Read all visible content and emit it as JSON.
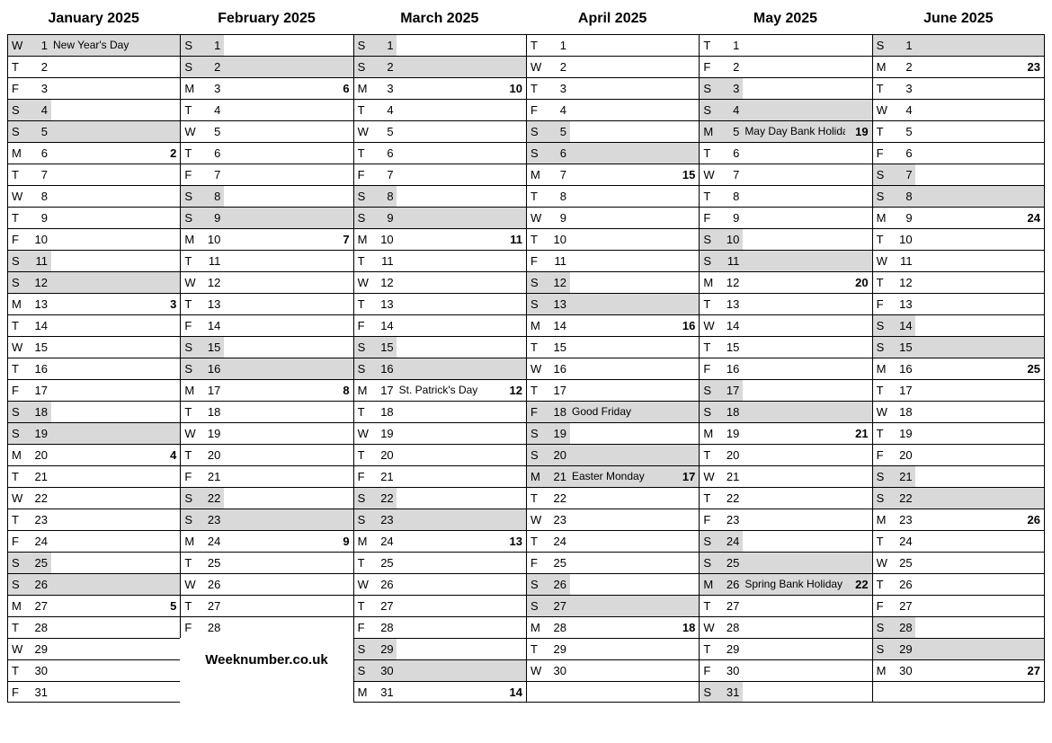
{
  "footer": "Weeknumber.co.uk",
  "colors": {
    "weekend_bg": "#d9d9d9",
    "border": "#000000",
    "text": "#000000",
    "bg": "#ffffff"
  },
  "weekend_short_pct": 25,
  "weekend_full_pct": 100,
  "months": [
    {
      "title": "January 2025",
      "days": [
        {
          "dow": "W",
          "n": 1,
          "label": "New Year's Day",
          "wend": "full"
        },
        {
          "dow": "T",
          "n": 2
        },
        {
          "dow": "F",
          "n": 3
        },
        {
          "dow": "S",
          "n": 4,
          "wend": "short"
        },
        {
          "dow": "S",
          "n": 5,
          "wend": "full"
        },
        {
          "dow": "M",
          "n": 6,
          "wk": 2
        },
        {
          "dow": "T",
          "n": 7
        },
        {
          "dow": "W",
          "n": 8
        },
        {
          "dow": "T",
          "n": 9
        },
        {
          "dow": "F",
          "n": 10
        },
        {
          "dow": "S",
          "n": 11,
          "wend": "short"
        },
        {
          "dow": "S",
          "n": 12,
          "wend": "full"
        },
        {
          "dow": "M",
          "n": 13,
          "wk": 3
        },
        {
          "dow": "T",
          "n": 14
        },
        {
          "dow": "W",
          "n": 15
        },
        {
          "dow": "T",
          "n": 16
        },
        {
          "dow": "F",
          "n": 17
        },
        {
          "dow": "S",
          "n": 18,
          "wend": "short"
        },
        {
          "dow": "S",
          "n": 19,
          "wend": "full"
        },
        {
          "dow": "M",
          "n": 20,
          "wk": 4
        },
        {
          "dow": "T",
          "n": 21
        },
        {
          "dow": "W",
          "n": 22
        },
        {
          "dow": "T",
          "n": 23
        },
        {
          "dow": "F",
          "n": 24
        },
        {
          "dow": "S",
          "n": 25,
          "wend": "short"
        },
        {
          "dow": "S",
          "n": 26,
          "wend": "full"
        },
        {
          "dow": "M",
          "n": 27,
          "wk": 5
        },
        {
          "dow": "T",
          "n": 28
        },
        {
          "dow": "W",
          "n": 29
        },
        {
          "dow": "T",
          "n": 30
        },
        {
          "dow": "F",
          "n": 31
        }
      ]
    },
    {
      "title": "February 2025",
      "days": [
        {
          "dow": "S",
          "n": 1,
          "wend": "short"
        },
        {
          "dow": "S",
          "n": 2,
          "wend": "full"
        },
        {
          "dow": "M",
          "n": 3,
          "wk": 6
        },
        {
          "dow": "T",
          "n": 4
        },
        {
          "dow": "W",
          "n": 5
        },
        {
          "dow": "T",
          "n": 6
        },
        {
          "dow": "F",
          "n": 7
        },
        {
          "dow": "S",
          "n": 8,
          "wend": "short"
        },
        {
          "dow": "S",
          "n": 9,
          "wend": "full"
        },
        {
          "dow": "M",
          "n": 10,
          "wk": 7
        },
        {
          "dow": "T",
          "n": 11
        },
        {
          "dow": "W",
          "n": 12
        },
        {
          "dow": "T",
          "n": 13
        },
        {
          "dow": "F",
          "n": 14
        },
        {
          "dow": "S",
          "n": 15,
          "wend": "short"
        },
        {
          "dow": "S",
          "n": 16,
          "wend": "full"
        },
        {
          "dow": "M",
          "n": 17,
          "wk": 8
        },
        {
          "dow": "T",
          "n": 18
        },
        {
          "dow": "W",
          "n": 19
        },
        {
          "dow": "T",
          "n": 20
        },
        {
          "dow": "F",
          "n": 21
        },
        {
          "dow": "S",
          "n": 22,
          "wend": "short"
        },
        {
          "dow": "S",
          "n": 23,
          "wend": "full"
        },
        {
          "dow": "M",
          "n": 24,
          "wk": 9
        },
        {
          "dow": "T",
          "n": 25
        },
        {
          "dow": "W",
          "n": 26
        },
        {
          "dow": "T",
          "n": 27
        },
        {
          "dow": "F",
          "n": 28
        }
      ],
      "footer_after": true
    },
    {
      "title": "March 2025",
      "days": [
        {
          "dow": "S",
          "n": 1,
          "wend": "short"
        },
        {
          "dow": "S",
          "n": 2,
          "wend": "full"
        },
        {
          "dow": "M",
          "n": 3,
          "wk": 10
        },
        {
          "dow": "T",
          "n": 4
        },
        {
          "dow": "W",
          "n": 5
        },
        {
          "dow": "T",
          "n": 6
        },
        {
          "dow": "F",
          "n": 7
        },
        {
          "dow": "S",
          "n": 8,
          "wend": "short"
        },
        {
          "dow": "S",
          "n": 9,
          "wend": "full"
        },
        {
          "dow": "M",
          "n": 10,
          "wk": 11
        },
        {
          "dow": "T",
          "n": 11
        },
        {
          "dow": "W",
          "n": 12
        },
        {
          "dow": "T",
          "n": 13
        },
        {
          "dow": "F",
          "n": 14
        },
        {
          "dow": "S",
          "n": 15,
          "wend": "short"
        },
        {
          "dow": "S",
          "n": 16,
          "wend": "full"
        },
        {
          "dow": "M",
          "n": 17,
          "label": "St. Patrick's Day",
          "wk": 12
        },
        {
          "dow": "T",
          "n": 18
        },
        {
          "dow": "W",
          "n": 19
        },
        {
          "dow": "T",
          "n": 20
        },
        {
          "dow": "F",
          "n": 21
        },
        {
          "dow": "S",
          "n": 22,
          "wend": "short"
        },
        {
          "dow": "S",
          "n": 23,
          "wend": "full"
        },
        {
          "dow": "M",
          "n": 24,
          "wk": 13
        },
        {
          "dow": "T",
          "n": 25
        },
        {
          "dow": "W",
          "n": 26
        },
        {
          "dow": "T",
          "n": 27
        },
        {
          "dow": "F",
          "n": 28
        },
        {
          "dow": "S",
          "n": 29,
          "wend": "short"
        },
        {
          "dow": "S",
          "n": 30,
          "wend": "full"
        },
        {
          "dow": "M",
          "n": 31,
          "wk": 14
        }
      ]
    },
    {
      "title": "April 2025",
      "days": [
        {
          "dow": "T",
          "n": 1
        },
        {
          "dow": "W",
          "n": 2
        },
        {
          "dow": "T",
          "n": 3
        },
        {
          "dow": "F",
          "n": 4
        },
        {
          "dow": "S",
          "n": 5,
          "wend": "short"
        },
        {
          "dow": "S",
          "n": 6,
          "wend": "full"
        },
        {
          "dow": "M",
          "n": 7,
          "wk": 15
        },
        {
          "dow": "T",
          "n": 8
        },
        {
          "dow": "W",
          "n": 9
        },
        {
          "dow": "T",
          "n": 10
        },
        {
          "dow": "F",
          "n": 11
        },
        {
          "dow": "S",
          "n": 12,
          "wend": "short"
        },
        {
          "dow": "S",
          "n": 13,
          "wend": "full"
        },
        {
          "dow": "M",
          "n": 14,
          "wk": 16
        },
        {
          "dow": "T",
          "n": 15
        },
        {
          "dow": "W",
          "n": 16
        },
        {
          "dow": "T",
          "n": 17
        },
        {
          "dow": "F",
          "n": 18,
          "label": "Good Friday",
          "wend": "full"
        },
        {
          "dow": "S",
          "n": 19,
          "wend": "short"
        },
        {
          "dow": "S",
          "n": 20,
          "wend": "full"
        },
        {
          "dow": "M",
          "n": 21,
          "label": "Easter Monday",
          "wk": 17,
          "wend": "full"
        },
        {
          "dow": "T",
          "n": 22
        },
        {
          "dow": "W",
          "n": 23
        },
        {
          "dow": "T",
          "n": 24
        },
        {
          "dow": "F",
          "n": 25
        },
        {
          "dow": "S",
          "n": 26,
          "wend": "short"
        },
        {
          "dow": "S",
          "n": 27,
          "wend": "full"
        },
        {
          "dow": "M",
          "n": 28,
          "wk": 18
        },
        {
          "dow": "T",
          "n": 29
        },
        {
          "dow": "W",
          "n": 30
        }
      ]
    },
    {
      "title": "May 2025",
      "days": [
        {
          "dow": "T",
          "n": 1
        },
        {
          "dow": "F",
          "n": 2
        },
        {
          "dow": "S",
          "n": 3,
          "wend": "short"
        },
        {
          "dow": "S",
          "n": 4,
          "wend": "full"
        },
        {
          "dow": "M",
          "n": 5,
          "label": "May Day Bank Holiday",
          "wk": 19,
          "wend": "full"
        },
        {
          "dow": "T",
          "n": 6
        },
        {
          "dow": "W",
          "n": 7
        },
        {
          "dow": "T",
          "n": 8
        },
        {
          "dow": "F",
          "n": 9
        },
        {
          "dow": "S",
          "n": 10,
          "wend": "short"
        },
        {
          "dow": "S",
          "n": 11,
          "wend": "full"
        },
        {
          "dow": "M",
          "n": 12,
          "wk": 20
        },
        {
          "dow": "T",
          "n": 13
        },
        {
          "dow": "W",
          "n": 14
        },
        {
          "dow": "T",
          "n": 15
        },
        {
          "dow": "F",
          "n": 16
        },
        {
          "dow": "S",
          "n": 17,
          "wend": "short"
        },
        {
          "dow": "S",
          "n": 18,
          "wend": "full"
        },
        {
          "dow": "M",
          "n": 19,
          "wk": 21
        },
        {
          "dow": "T",
          "n": 20
        },
        {
          "dow": "W",
          "n": 21
        },
        {
          "dow": "T",
          "n": 22
        },
        {
          "dow": "F",
          "n": 23
        },
        {
          "dow": "S",
          "n": 24,
          "wend": "short"
        },
        {
          "dow": "S",
          "n": 25,
          "wend": "full"
        },
        {
          "dow": "M",
          "n": 26,
          "label": "Spring Bank Holiday",
          "wk": 22,
          "wend": "full"
        },
        {
          "dow": "T",
          "n": 27
        },
        {
          "dow": "W",
          "n": 28
        },
        {
          "dow": "T",
          "n": 29
        },
        {
          "dow": "F",
          "n": 30
        },
        {
          "dow": "S",
          "n": 31,
          "wend": "short"
        }
      ]
    },
    {
      "title": "June 2025",
      "days": [
        {
          "dow": "S",
          "n": 1,
          "wend": "full"
        },
        {
          "dow": "M",
          "n": 2,
          "wk": 23
        },
        {
          "dow": "T",
          "n": 3
        },
        {
          "dow": "W",
          "n": 4
        },
        {
          "dow": "T",
          "n": 5
        },
        {
          "dow": "F",
          "n": 6
        },
        {
          "dow": "S",
          "n": 7,
          "wend": "short"
        },
        {
          "dow": "S",
          "n": 8,
          "wend": "full"
        },
        {
          "dow": "M",
          "n": 9,
          "wk": 24
        },
        {
          "dow": "T",
          "n": 10
        },
        {
          "dow": "W",
          "n": 11
        },
        {
          "dow": "T",
          "n": 12
        },
        {
          "dow": "F",
          "n": 13
        },
        {
          "dow": "S",
          "n": 14,
          "wend": "short"
        },
        {
          "dow": "S",
          "n": 15,
          "wend": "full"
        },
        {
          "dow": "M",
          "n": 16,
          "wk": 25
        },
        {
          "dow": "T",
          "n": 17
        },
        {
          "dow": "W",
          "n": 18
        },
        {
          "dow": "T",
          "n": 19
        },
        {
          "dow": "F",
          "n": 20
        },
        {
          "dow": "S",
          "n": 21,
          "wend": "short"
        },
        {
          "dow": "S",
          "n": 22,
          "wend": "full"
        },
        {
          "dow": "M",
          "n": 23,
          "wk": 26
        },
        {
          "dow": "T",
          "n": 24
        },
        {
          "dow": "W",
          "n": 25
        },
        {
          "dow": "T",
          "n": 26
        },
        {
          "dow": "F",
          "n": 27
        },
        {
          "dow": "S",
          "n": 28,
          "wend": "short"
        },
        {
          "dow": "S",
          "n": 29,
          "wend": "full"
        },
        {
          "dow": "M",
          "n": 30,
          "wk": 27
        }
      ]
    }
  ]
}
